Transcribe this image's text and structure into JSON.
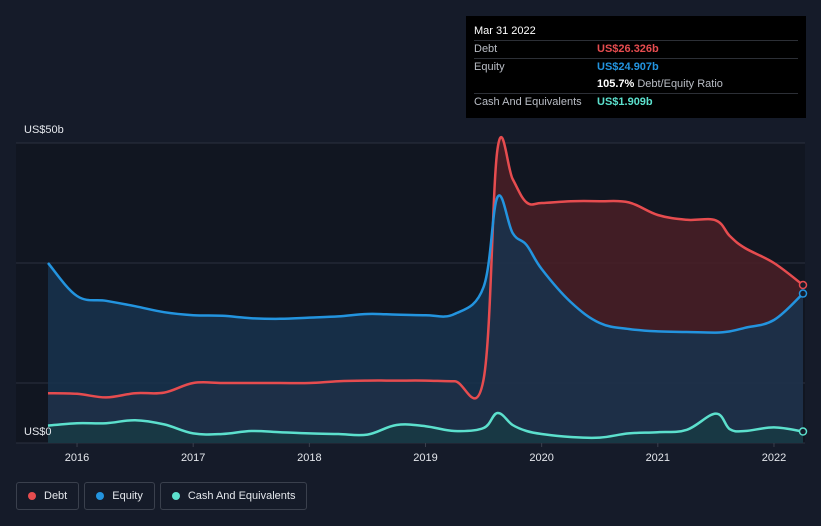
{
  "chart_data": {
    "type": "area",
    "title": "",
    "y_top_label": "US$50b",
    "y_bottom_label": "US$0",
    "xlabel": "",
    "ylabel": "",
    "ylim": [
      0,
      50
    ],
    "x_ticks": [
      "2016",
      "2017",
      "2018",
      "2019",
      "2020",
      "2021",
      "2022"
    ],
    "x_tick_values": [
      2016.0,
      2017.0,
      2018.0,
      2019.0,
      2020.0,
      2021.0,
      2022.0
    ],
    "x_range": [
      2015.75,
      2022.25
    ],
    "grid": true,
    "legend": "bottom-left",
    "series": [
      {
        "name": "Debt",
        "color": "#e64c4f",
        "fill": "#4a1e26",
        "x": [
          2015.75,
          2016.0,
          2016.25,
          2016.5,
          2016.75,
          2017.0,
          2017.25,
          2017.5,
          2017.75,
          2018.0,
          2018.25,
          2018.5,
          2018.75,
          2019.0,
          2019.25,
          2019.5,
          2019.62,
          2019.75,
          2019.87,
          2020.0,
          2020.25,
          2020.5,
          2020.75,
          2021.0,
          2021.25,
          2021.5,
          2021.62,
          2021.75,
          2022.0,
          2022.25
        ],
        "values": [
          8.3,
          8.2,
          7.6,
          8.3,
          8.4,
          10.0,
          10.0,
          10.0,
          10.0,
          10.0,
          10.3,
          10.4,
          10.4,
          10.4,
          10.3,
          10.6,
          49.0,
          44.0,
          40.1,
          40.0,
          40.3,
          40.3,
          40.1,
          38.0,
          37.2,
          37.1,
          34.5,
          32.5,
          30.0,
          26.326
        ]
      },
      {
        "name": "Equity",
        "color": "#2394df",
        "fill": "#17324d",
        "x": [
          2015.75,
          2016.0,
          2016.25,
          2016.5,
          2016.75,
          2017.0,
          2017.25,
          2017.5,
          2017.75,
          2018.0,
          2018.25,
          2018.5,
          2018.75,
          2019.0,
          2019.25,
          2019.5,
          2019.62,
          2019.75,
          2019.87,
          2020.0,
          2020.25,
          2020.5,
          2020.75,
          2021.0,
          2021.25,
          2021.5,
          2021.62,
          2021.75,
          2022.0,
          2022.25
        ],
        "values": [
          30.0,
          24.5,
          23.7,
          22.8,
          21.8,
          21.3,
          21.2,
          20.8,
          20.7,
          20.9,
          21.1,
          21.5,
          21.4,
          21.3,
          21.5,
          26.0,
          41.0,
          35.0,
          33.0,
          29.0,
          23.5,
          20.0,
          19.0,
          18.6,
          18.5,
          18.4,
          18.6,
          19.2,
          20.5,
          24.907
        ]
      },
      {
        "name": "Cash And Equivalents",
        "color": "#5ce0cd",
        "fill": "#173a44",
        "x": [
          2015.75,
          2016.0,
          2016.25,
          2016.5,
          2016.75,
          2017.0,
          2017.25,
          2017.5,
          2017.75,
          2018.0,
          2018.25,
          2018.5,
          2018.75,
          2019.0,
          2019.25,
          2019.5,
          2019.62,
          2019.75,
          2019.87,
          2020.0,
          2020.25,
          2020.5,
          2020.75,
          2021.0,
          2021.25,
          2021.5,
          2021.62,
          2021.75,
          2022.0,
          2022.25
        ],
        "values": [
          2.9,
          3.3,
          3.3,
          3.8,
          3.1,
          1.6,
          1.5,
          2.0,
          1.8,
          1.6,
          1.5,
          1.4,
          3.0,
          2.8,
          2.0,
          2.5,
          5.0,
          3.0,
          2.0,
          1.5,
          1.0,
          0.9,
          1.6,
          1.8,
          2.2,
          4.9,
          2.3,
          2.0,
          2.6,
          1.909
        ]
      }
    ],
    "tooltip": {
      "date": "Mar 31 2022",
      "rows": [
        {
          "key": "Debt",
          "value": "US$26.326b",
          "color": "#e64c4f"
        },
        {
          "key": "Equity",
          "value": "US$24.907b",
          "color": "#2394df"
        },
        {
          "key": "",
          "value": "105.7%",
          "suffix": "Debt/Equity Ratio",
          "color": "#ffffff"
        },
        {
          "key": "Cash And Equivalents",
          "value": "US$1.909b",
          "color": "#5ce0cd"
        }
      ]
    }
  }
}
